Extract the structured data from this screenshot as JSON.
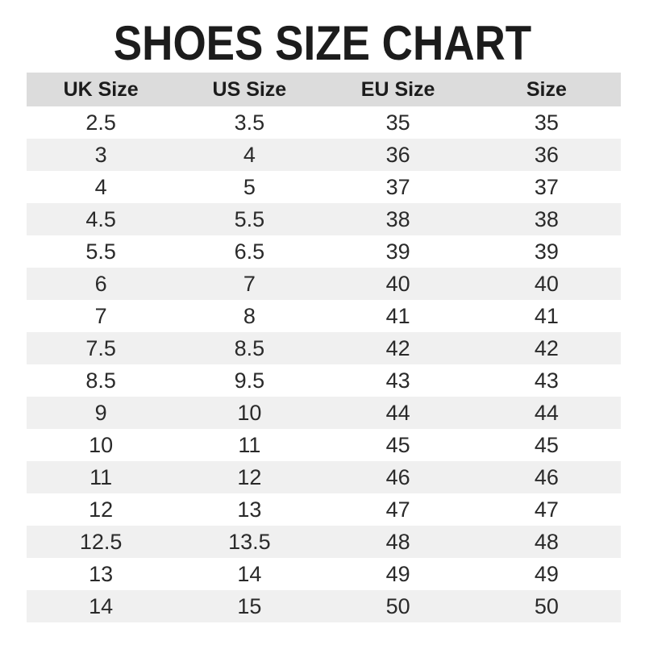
{
  "title": "SHOES SIZE CHART",
  "chart_data": {
    "type": "table",
    "title": "SHOES SIZE CHART",
    "columns": [
      "UK Size",
      "US Size",
      "EU Size",
      "Size"
    ],
    "rows": [
      [
        "2.5",
        "3.5",
        "35",
        "35"
      ],
      [
        "3",
        "4",
        "36",
        "36"
      ],
      [
        "4",
        "5",
        "37",
        "37"
      ],
      [
        "4.5",
        "5.5",
        "38",
        "38"
      ],
      [
        "5.5",
        "6.5",
        "39",
        "39"
      ],
      [
        "6",
        "7",
        "40",
        "40"
      ],
      [
        "7",
        "8",
        "41",
        "41"
      ],
      [
        "7.5",
        "8.5",
        "42",
        "42"
      ],
      [
        "8.5",
        "9.5",
        "43",
        "43"
      ],
      [
        "9",
        "10",
        "44",
        "44"
      ],
      [
        "10",
        "11",
        "45",
        "45"
      ],
      [
        "11",
        "12",
        "46",
        "46"
      ],
      [
        "12",
        "13",
        "47",
        "47"
      ],
      [
        "12.5",
        "13.5",
        "48",
        "48"
      ],
      [
        "13",
        "14",
        "49",
        "49"
      ],
      [
        "14",
        "15",
        "50",
        "50"
      ]
    ],
    "layout": {
      "zebra_striping": true,
      "first_data_row_background": "white",
      "grid": false,
      "legend": "none"
    }
  },
  "colors": {
    "title_text": "#1c1c1c",
    "header_background": "#dcdcdc",
    "alternate_row_background": "#f0f0f0",
    "page_background": "#ffffff",
    "cell_text": "#2a2a2a"
  }
}
